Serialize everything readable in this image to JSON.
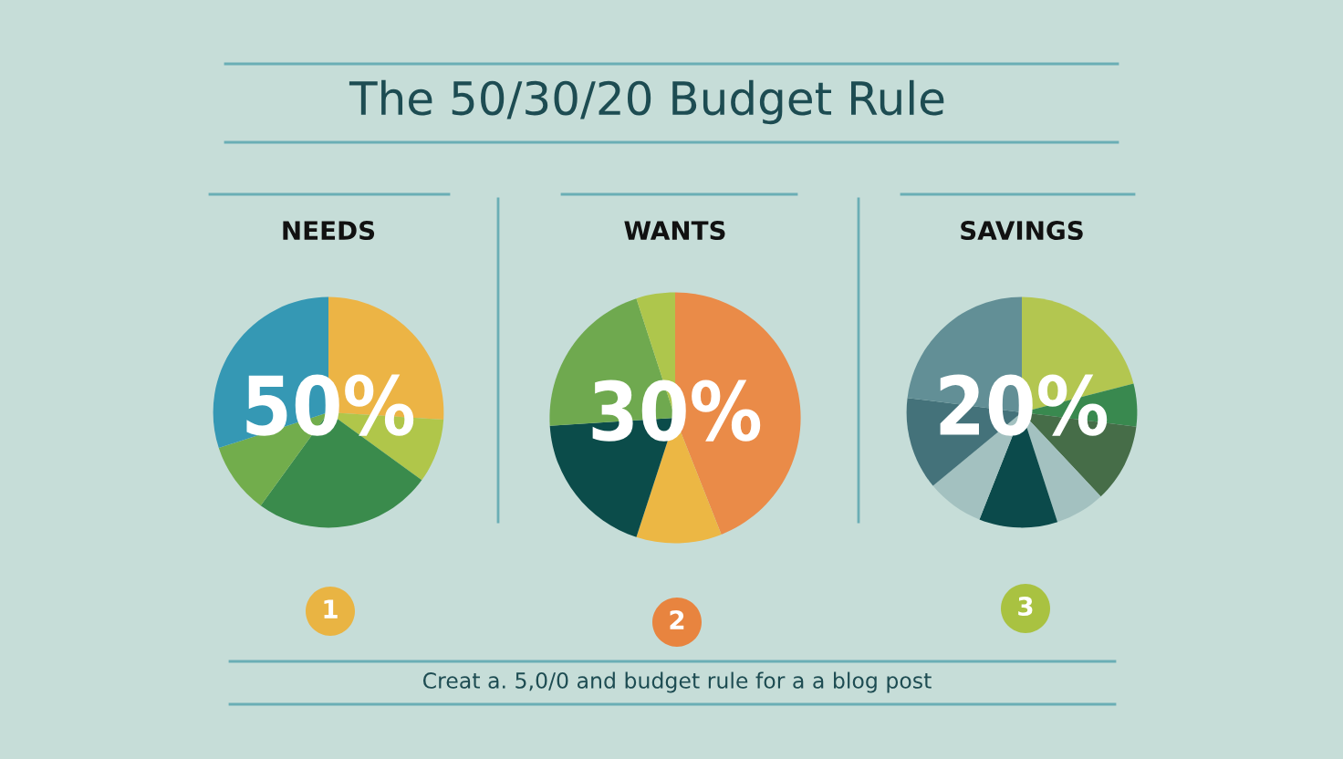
{
  "chart_data": [
    {
      "type": "pie",
      "title": "NEEDS",
      "categories": [
        null,
        null,
        null,
        null,
        null
      ],
      "values": [
        26,
        9,
        25,
        10,
        30
      ],
      "colors": [
        "#ecb445",
        "#b0c64a",
        "#3a8b4c",
        "#72ad4c",
        "#3598b4"
      ],
      "annotations": [
        "50%",
        "1",
        "The 50/30/20 Budget Rule"
      ]
    },
    {
      "type": "pie",
      "title": "WANTS",
      "categories": [
        null,
        null,
        null,
        null,
        null
      ],
      "values": [
        44,
        11,
        19,
        21,
        5
      ],
      "colors": [
        "#ea8b48",
        "#ecb744",
        "#0b4c4a",
        "#6fa94f",
        "#aec64c"
      ],
      "annotations": [
        "30%",
        "2"
      ]
    },
    {
      "type": "pie",
      "title": "SAVINGS",
      "categories": [
        null,
        null,
        null,
        null,
        null,
        null,
        null,
        null
      ],
      "values": [
        21,
        6,
        11,
        7,
        11,
        8,
        13,
        23
      ],
      "colors": [
        "#b3c650",
        "#39894f",
        "#466d48",
        "#a3c1c0",
        "#0b4a4b",
        "#a3c1c0",
        "#44727a",
        "#628f96"
      ],
      "annotations": [
        "20%",
        "3",
        "Creat a. 5,0/0 and budget rule for a a blog post"
      ]
    }
  ]
}
